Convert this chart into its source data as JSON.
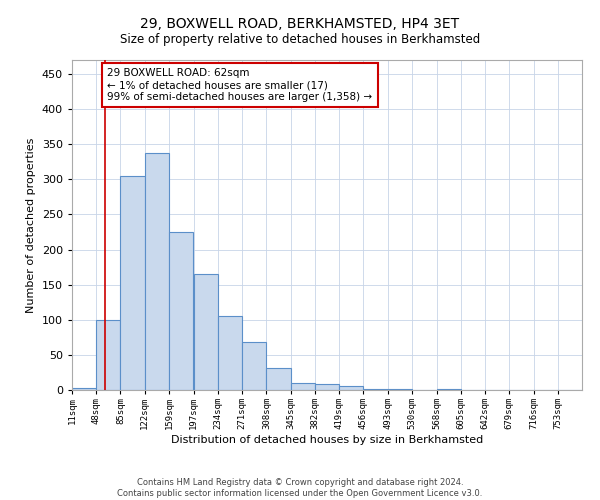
{
  "title": "29, BOXWELL ROAD, BERKHAMSTED, HP4 3ET",
  "subtitle": "Size of property relative to detached houses in Berkhamsted",
  "xlabel": "Distribution of detached houses by size in Berkhamsted",
  "ylabel": "Number of detached properties",
  "bar_heights": [
    3,
    100,
    305,
    338,
    225,
    165,
    105,
    68,
    32,
    10,
    8,
    6,
    2,
    1,
    0,
    1,
    0,
    0,
    0,
    0,
    0
  ],
  "bar_left_edges": [
    11,
    48,
    85,
    122,
    159,
    197,
    234,
    271,
    308,
    345,
    382,
    419,
    456,
    493,
    530,
    568,
    605,
    642,
    679,
    716,
    753
  ],
  "bin_width": 37,
  "bar_color": "#c9d9ed",
  "bar_edge_color": "#5b8fc9",
  "property_line_x": 62,
  "property_line_color": "#cc0000",
  "annotation_text": "29 BOXWELL ROAD: 62sqm\n← 1% of detached houses are smaller (17)\n99% of semi-detached houses are larger (1,358) →",
  "annotation_box_color": "#ffffff",
  "annotation_box_edge": "#cc0000",
  "tick_labels": [
    "11sqm",
    "48sqm",
    "85sqm",
    "122sqm",
    "159sqm",
    "197sqm",
    "234sqm",
    "271sqm",
    "308sqm",
    "345sqm",
    "382sqm",
    "419sqm",
    "456sqm",
    "493sqm",
    "530sqm",
    "568sqm",
    "605sqm",
    "642sqm",
    "679sqm",
    "716sqm",
    "753sqm"
  ],
  "yticks": [
    0,
    50,
    100,
    150,
    200,
    250,
    300,
    350,
    400,
    450
  ],
  "ylim": [
    0,
    470
  ],
  "footer": "Contains HM Land Registry data © Crown copyright and database right 2024.\nContains public sector information licensed under the Open Government Licence v3.0.",
  "background_color": "#ffffff",
  "grid_color": "#c8d4e8"
}
